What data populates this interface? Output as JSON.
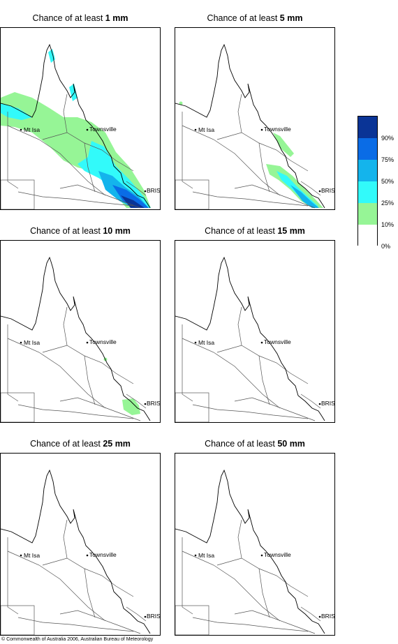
{
  "panels": [
    {
      "prefix": "Chance of at least ",
      "amount": "1 mm"
    },
    {
      "prefix": "Chance of at least ",
      "amount": "5 mm"
    },
    {
      "prefix": "Chance of at least ",
      "amount": "10 mm"
    },
    {
      "prefix": "Chance of at least ",
      "amount": "15 mm"
    },
    {
      "prefix": "Chance of at least ",
      "amount": "25 mm"
    },
    {
      "prefix": "Chance of at least ",
      "amount": "50 mm"
    }
  ],
  "places": {
    "townsville": "Townsville",
    "mt_isa": "Mt Isa",
    "bris": "BRIS"
  },
  "legend": {
    "labels": [
      "90%",
      "75%",
      "50%",
      "25%",
      "10%",
      "0%"
    ],
    "colors": [
      "#0a3496",
      "#0a6ce6",
      "#14b4ec",
      "#32fafa",
      "#96f596",
      "#ffffff"
    ]
  },
  "copyright": "© Commonwealth of Australia 2006, Australian Bureau of Meteorology"
}
